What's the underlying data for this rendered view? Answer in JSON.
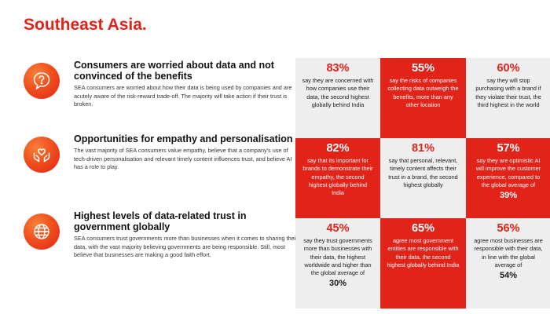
{
  "page_title": "Southeast Asia.",
  "sections": [
    {
      "icon": "question-bubble-icon",
      "heading": "Consumers are worried about data and not convinced of the benefits",
      "body": "SEA consumers are worried about how their data is being used by companies and are acutely aware of the risk-reward trade-off. The majority will take action if their trust is broken."
    },
    {
      "icon": "heart-hands-icon",
      "heading": "Opportunities for empathy and personalisation",
      "body": "The vast majority of SEA consumers value empathy, believe that a company's use of tech-driven personalisation and relevant timely content influences trust, and believe AI has a role to play."
    },
    {
      "icon": "globe-icon",
      "heading": "Highest levels of data-related trust in government globally",
      "body": "SEA consumers trust governments more than businesses when it comes to sharing their data, with the vast majority believing governments are being responsible. Still, most believe that businesses are making a good faith effort."
    }
  ],
  "stats": [
    {
      "value": "83%",
      "text": "say they are concerned with how companies use their data, the second highest globally behind India",
      "avg": "",
      "style": "light"
    },
    {
      "value": "55%",
      "text": "say the risks of companies collecting data outweigh the benefits, more than any other location",
      "avg": "",
      "style": "red"
    },
    {
      "value": "60%",
      "text": "say they will stop purchasing with a brand if they violate their trust, the third highest in the world",
      "avg": "",
      "style": "light"
    },
    {
      "value": "82%",
      "text": "say that its important for brands to demonstrate their empathy, the second highest globally behind India",
      "avg": "",
      "style": "red"
    },
    {
      "value": "81%",
      "text": "say that personal, relevant, timely content affects their trust in a brand, the second highest globally",
      "avg": "",
      "style": "light"
    },
    {
      "value": "57%",
      "text": "say they are optimistic AI will improve the customer experience, compared to the global average of",
      "avg": "39%",
      "style": "red"
    },
    {
      "value": "45%",
      "text": "say they trust governments more than businesses with their data, the highest worldwide and higher than the global average of",
      "avg": "30%",
      "style": "light"
    },
    {
      "value": "65%",
      "text": "agree most government entities are responsible with their data, the second highest globally behind India",
      "avg": "",
      "style": "red"
    },
    {
      "value": "56%",
      "text": "agree most businesses are responsible with their data, in line with the global average of",
      "avg": "54%",
      "style": "light"
    }
  ],
  "colors": {
    "accent": "#e2231a",
    "light_cell": "#eeeeee"
  }
}
